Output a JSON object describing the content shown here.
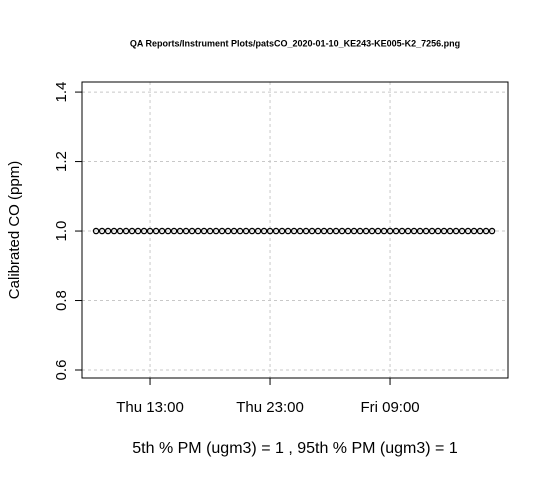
{
  "chart_data": {
    "type": "scatter",
    "title": "QA Reports/Instrument Plots/patsCO_2020-01-10_KE243-KE005-K2_7256.png",
    "y_label": "Calibrated CO (ppm)",
    "x_label": "5th % PM (ugm3) =  1 , 95th % PM (ugm3)  =  1",
    "x": [
      8.5,
      9,
      9.5,
      10,
      10.5,
      11,
      11.5,
      12,
      12.5,
      13,
      13.5,
      14,
      14.5,
      15,
      15.5,
      16,
      16.5,
      17,
      17.5,
      18,
      18.5,
      19,
      19.5,
      20,
      20.5,
      21,
      21.5,
      22,
      22.5,
      23,
      23.5,
      24,
      24.5,
      25,
      25.5,
      26,
      26.5,
      27,
      27.5,
      28,
      28.5,
      29,
      29.5,
      30,
      30.5,
      31,
      31.5,
      32,
      32.5,
      33,
      33.5,
      34,
      34.5,
      35,
      35.5,
      36,
      36.5,
      37,
      37.5,
      38,
      38.5,
      39,
      39.5,
      40,
      40.5,
      41,
      41.5
    ],
    "values": [
      1,
      1,
      1,
      1,
      1,
      1,
      1,
      1,
      1,
      1,
      1,
      1,
      1,
      1,
      1,
      1,
      1,
      1,
      1,
      1,
      1,
      1,
      1,
      1,
      1,
      1,
      1,
      1,
      1,
      1,
      1,
      1,
      1,
      1,
      1,
      1,
      1,
      1,
      1,
      1,
      1,
      1,
      1,
      1,
      1,
      1,
      1,
      1,
      1,
      1,
      1,
      1,
      1,
      1,
      1,
      1,
      1,
      1,
      1,
      1,
      1,
      1,
      1,
      1,
      1,
      1,
      1
    ],
    "color": "#000000",
    "xlim": [
      7.33,
      42.83
    ],
    "xticks": [
      {
        "value": 13,
        "label": "Thu 13:00"
      },
      {
        "value": 23,
        "label": "Thu 23:00"
      },
      {
        "value": 33,
        "label": "Fri 09:00"
      }
    ],
    "ylim": [
      0.577,
      1.429
    ],
    "yticks": [
      0.6,
      0.8,
      {
        "value": 1.0,
        "label": "1.0"
      },
      1.2,
      1.4
    ],
    "grid": true
  }
}
